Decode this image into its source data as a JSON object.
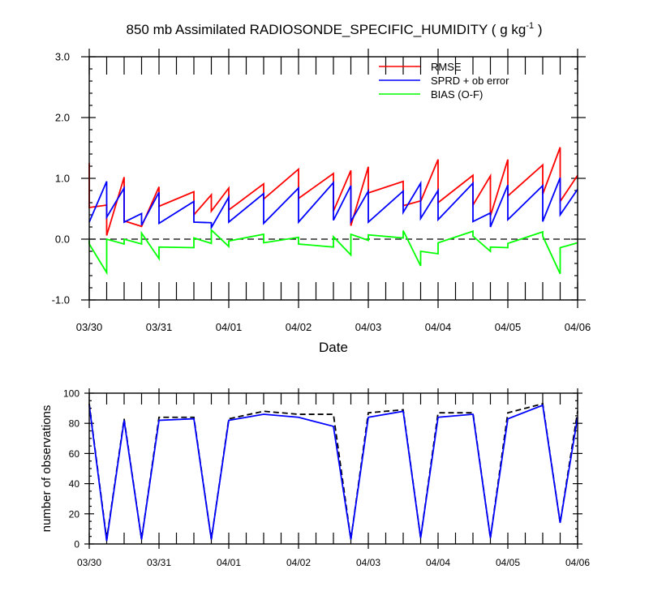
{
  "chart_data": [
    {
      "type": "line",
      "title": "850 mb Assimilated RADIOSONDE_SPECIFIC_HUMIDITY ( g kg",
      "title_superscript": "-1",
      "title_suffix": " )",
      "xlabel": "Date",
      "ylabel": "",
      "ylim": [
        -1.0,
        3.0
      ],
      "yticks": [
        "-1.0",
        "0.0",
        "1.0",
        "2.0",
        "3.0"
      ],
      "xlim": [
        0,
        7
      ],
      "xticks": [
        "03/30",
        "03/31",
        "04/01",
        "04/02",
        "04/03",
        "04/04",
        "04/05",
        "04/06"
      ],
      "zero_line": "dashed",
      "legend_position": "top-right",
      "series": [
        {
          "name": "RMSE",
          "color": "#ff0000",
          "x": [
            0,
            0,
            0.25,
            0.25,
            0.5,
            0.5,
            0.75,
            1.0,
            1.0,
            1.5,
            1.5,
            1.75,
            1.75,
            2.0,
            2.0,
            2.5,
            2.5,
            3.0,
            3.0,
            3.5,
            3.5,
            3.75,
            3.75,
            4.0,
            4.0,
            4.5,
            4.5,
            4.75,
            4.75,
            5.0,
            5.0,
            5.5,
            5.5,
            5.75,
            5.75,
            6.0,
            6.0,
            6.5,
            6.5,
            6.75,
            6.75,
            7.0
          ],
          "y": [
            1.25,
            0.52,
            0.56,
            0.06,
            1.02,
            0.3,
            0.21,
            0.86,
            0.54,
            0.78,
            0.4,
            0.73,
            0.46,
            0.84,
            0.48,
            0.91,
            0.66,
            1.15,
            0.67,
            1.08,
            0.46,
            1.13,
            0.22,
            1.19,
            0.76,
            0.95,
            0.55,
            0.63,
            0.62,
            1.31,
            0.6,
            1.05,
            0.56,
            1.04,
            0.38,
            1.31,
            0.71,
            1.22,
            0.74,
            1.51,
            0.62,
            1.05
          ]
        },
        {
          "name": "SPRD + ob error",
          "color": "#0000ff",
          "x": [
            0,
            0.25,
            0.25,
            0.5,
            0.5,
            0.75,
            0.75,
            0.75,
            1.0,
            1.0,
            1.5,
            1.5,
            1.75,
            1.75,
            2.0,
            2.0,
            2.5,
            2.5,
            3.0,
            3.0,
            3.5,
            3.5,
            3.75,
            3.75,
            4.0,
            4.0,
            4.5,
            4.5,
            4.75,
            4.75,
            5.0,
            5.0,
            5.5,
            5.5,
            5.75,
            5.75,
            6.0,
            6.0,
            6.5,
            6.5,
            6.75,
            6.75,
            7.0
          ],
          "y": [
            0.28,
            0.95,
            0.36,
            0.84,
            0.28,
            0.42,
            0.23,
            0.23,
            0.77,
            0.26,
            0.62,
            0.28,
            0.27,
            0.19,
            0.69,
            0.28,
            0.75,
            0.26,
            0.84,
            0.28,
            0.93,
            0.31,
            0.88,
            0.29,
            0.79,
            0.28,
            0.79,
            0.44,
            0.92,
            0.34,
            0.8,
            0.32,
            0.92,
            0.29,
            0.43,
            0.2,
            0.89,
            0.32,
            0.88,
            0.29,
            1.01,
            0.4,
            0.82
          ]
        },
        {
          "name": "BIAS (O-F)",
          "color": "#00ff00",
          "x": [
            0,
            0,
            0.25,
            0.25,
            0.5,
            0.5,
            0.75,
            0.75,
            1.0,
            1.0,
            1.5,
            1.5,
            1.75,
            1.75,
            2.0,
            2.0,
            2.5,
            2.5,
            3.0,
            3.0,
            3.5,
            3.5,
            3.75,
            3.75,
            4.0,
            4.0,
            4.5,
            4.5,
            4.75,
            4.75,
            5.0,
            5.0,
            5.5,
            5.5,
            5.75,
            5.75,
            6.0,
            6.0,
            6.5,
            6.5,
            6.75,
            6.75,
            7.0
          ],
          "y": [
            -0.02,
            -0.08,
            -0.55,
            0.0,
            -0.08,
            0.0,
            -0.08,
            0.1,
            -0.32,
            -0.13,
            -0.14,
            0.02,
            -0.07,
            0.15,
            -0.12,
            -0.03,
            0.08,
            -0.06,
            0.03,
            -0.08,
            -0.13,
            0.04,
            -0.26,
            0.08,
            -0.02,
            0.07,
            0.02,
            0.14,
            -0.44,
            -0.2,
            -0.24,
            -0.06,
            0.13,
            0.05,
            -0.2,
            -0.13,
            -0.14,
            -0.07,
            0.12,
            0.05,
            -0.57,
            -0.14,
            -0.06
          ]
        }
      ]
    },
    {
      "type": "line",
      "title": "",
      "xlabel": "",
      "ylabel": "number of observations",
      "ylim": [
        0,
        100
      ],
      "yticks": [
        "0",
        "20",
        "40",
        "60",
        "80",
        "100"
      ],
      "xlim": [
        0,
        7
      ],
      "xticks": [
        "03/30",
        "03/31",
        "04/01",
        "04/02",
        "04/03",
        "04/04",
        "04/05",
        "04/06"
      ],
      "series": [
        {
          "color": "#000000",
          "dash": "dashed",
          "x": [
            0,
            0.25,
            0.5,
            0.75,
            1.0,
            1.5,
            1.75,
            2.0,
            2.5,
            3.0,
            3.5,
            3.75,
            4.0,
            4.5,
            4.75,
            5.0,
            5.5,
            5.75,
            6.0,
            6.5,
            6.75,
            7.0
          ],
          "y": [
            93,
            3,
            83,
            3,
            84,
            84,
            3,
            83,
            88,
            86,
            86,
            3,
            87,
            89,
            4,
            87,
            87,
            4,
            87,
            93,
            14,
            88
          ]
        },
        {
          "color": "#0000ff",
          "dash": "solid",
          "x": [
            0,
            0.25,
            0.5,
            0.75,
            1.0,
            1.5,
            1.75,
            2.0,
            2.5,
            3.0,
            3.5,
            3.75,
            4.0,
            4.5,
            4.75,
            5.0,
            5.5,
            5.75,
            6.0,
            6.5,
            6.75,
            7.0
          ],
          "y": [
            92,
            2,
            82,
            3,
            82,
            83,
            3,
            82,
            86,
            84,
            78,
            3,
            84,
            88,
            4,
            84,
            86,
            4,
            83,
            92,
            14,
            84
          ]
        }
      ]
    }
  ]
}
